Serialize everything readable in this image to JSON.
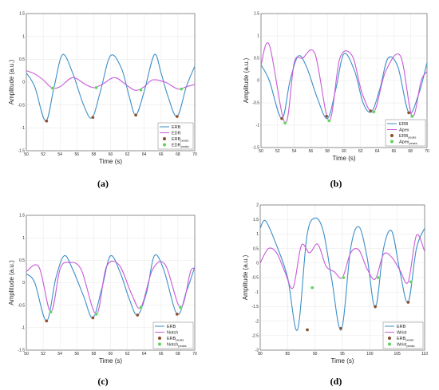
{
  "colors": {
    "blue": "#3d8fc8",
    "magenta": "#c85ad8",
    "peak_dark": "#8a4a2a",
    "peak_green": "#5bd45b",
    "grid": "#e6e6e6"
  },
  "chart_data": [
    {
      "type": "line",
      "label": "(a)",
      "xlabel": "Time (s)",
      "ylabel": "Amplitude (a.u.)",
      "xlim": [
        50,
        70
      ],
      "ylim": [
        -1.5,
        1.5
      ],
      "grid": true,
      "legend_position": "bottom-right",
      "xticks": [
        "50",
        "52",
        "54",
        "56",
        "58",
        "60",
        "62",
        "64",
        "66",
        "68",
        "70"
      ],
      "yticks": [
        "-1.5",
        "-1",
        "-0.5",
        "0",
        "0.5",
        "1",
        "1.5"
      ],
      "series": [
        {
          "name": "ERB",
          "color": "blue",
          "x": [
            50,
            51,
            52.3,
            53.3,
            54.3,
            55.5,
            56.8,
            57.8,
            58.8,
            60,
            61.3,
            62.2,
            63,
            64,
            65.2,
            66,
            66.8,
            67.9,
            69,
            70
          ],
          "y": [
            0.2,
            -0.1,
            -0.85,
            -0.1,
            0.6,
            0.2,
            -0.5,
            -0.78,
            -0.2,
            0.58,
            0.3,
            -0.3,
            -0.72,
            -0.2,
            0.6,
            0.2,
            -0.3,
            -0.75,
            -0.1,
            0.35
          ]
        },
        {
          "name": "EDR",
          "color": "magenta",
          "x": [
            50,
            51,
            52,
            53,
            54,
            55.5,
            57,
            58,
            59,
            60.5,
            62,
            63,
            64,
            65,
            66.5,
            68,
            69,
            70
          ],
          "y": [
            0.25,
            0.18,
            0.05,
            -0.12,
            -0.1,
            0.1,
            -0.05,
            -0.12,
            -0.05,
            0.1,
            -0.08,
            -0.18,
            -0.1,
            0.05,
            0.0,
            -0.15,
            -0.1,
            -0.05
          ]
        },
        {
          "name": "ERB",
          "sub": "peaks",
          "marker": "dark",
          "x": [
            52.4,
            57.9,
            63,
            67.9
          ],
          "y": [
            -0.85,
            -0.77,
            -0.72,
            -0.75
          ]
        },
        {
          "name": "EDR",
          "sub": "peaks",
          "marker": "green",
          "x": [
            53.1,
            58.3,
            63.6,
            68.4
          ],
          "y": [
            -0.13,
            -0.12,
            -0.17,
            -0.15
          ]
        }
      ]
    },
    {
      "type": "line",
      "label": "(b)",
      "xlabel": "Time (s)",
      "ylabel": "Amplitude (a.u.)",
      "xlim": [
        50,
        70
      ],
      "ylim": [
        -1.5,
        1.5
      ],
      "grid": true,
      "legend_position": "bottom-right",
      "xticks": [
        "50",
        "52",
        "54",
        "56",
        "58",
        "60",
        "62",
        "64",
        "66",
        "68",
        "70"
      ],
      "yticks": [
        "-1.5",
        "-1",
        "-0.5",
        "0",
        "0.5",
        "1",
        "1.5"
      ],
      "series": [
        {
          "name": "ERB",
          "color": "blue",
          "x": [
            50,
            51,
            52.5,
            53.5,
            54.5,
            55.5,
            56.8,
            58,
            59,
            60,
            61.3,
            62.3,
            63.3,
            64.3,
            65.3,
            66.5,
            67.8,
            69,
            70
          ],
          "y": [
            0.35,
            0.0,
            -0.85,
            0.0,
            0.55,
            0.3,
            -0.4,
            -0.85,
            -0.2,
            0.6,
            0.2,
            -0.5,
            -0.7,
            -0.2,
            0.5,
            0.3,
            -0.72,
            -0.3,
            0.4
          ]
        },
        {
          "name": "Apex",
          "color": "magenta",
          "x": [
            50,
            51,
            52.9,
            54,
            55,
            56.5,
            58.2,
            59.5,
            61,
            62.2,
            63.6,
            65,
            66.8,
            68.2,
            69.3,
            70
          ],
          "y": [
            0.35,
            0.8,
            -0.95,
            0.4,
            0.5,
            0.6,
            -0.9,
            0.5,
            0.55,
            -0.3,
            -0.7,
            0.2,
            0.55,
            -0.8,
            0.0,
            0.2
          ]
        },
        {
          "name": "ERB",
          "sub": "peaks",
          "marker": "dark",
          "x": [
            52.5,
            57.9,
            63.2,
            67.8
          ],
          "y": [
            -0.85,
            -0.8,
            -0.68,
            -0.72
          ]
        },
        {
          "name": "Apex",
          "sub": "peaks",
          "marker": "green",
          "x": [
            52.9,
            58.2,
            63.6,
            68.2
          ],
          "y": [
            -0.95,
            -0.9,
            -0.7,
            -0.8
          ]
        }
      ]
    },
    {
      "type": "line",
      "label": "(c)",
      "xlabel": "Time (s)",
      "ylabel": "Amplitude (a.u.)",
      "xlim": [
        50,
        70
      ],
      "ylim": [
        -1.5,
        1.5
      ],
      "grid": true,
      "legend_position": "bottom-right",
      "xticks": [
        "50",
        "52",
        "54",
        "56",
        "58",
        "60",
        "62",
        "64",
        "66",
        "68",
        "70"
      ],
      "yticks": [
        "-1.5",
        "-1",
        "-0.5",
        "0",
        "0.5",
        "1",
        "1.5"
      ],
      "series": [
        {
          "name": "ERB",
          "color": "blue",
          "x": [
            50,
            51,
            52.4,
            53.5,
            54.5,
            55.5,
            56.8,
            57.9,
            59,
            60,
            61.2,
            62.2,
            63.2,
            64.3,
            65.2,
            66.3,
            67.9,
            69,
            70
          ],
          "y": [
            0.2,
            0.0,
            -0.85,
            0.1,
            0.6,
            0.3,
            -0.3,
            -0.78,
            -0.1,
            0.6,
            0.2,
            -0.35,
            -0.72,
            -0.2,
            0.6,
            0.3,
            -0.7,
            -0.2,
            0.35
          ]
        },
        {
          "name": "Notch",
          "color": "magenta",
          "x": [
            50,
            51.5,
            52.9,
            54,
            55,
            56.5,
            58.3,
            59.5,
            61,
            62.5,
            63.6,
            65,
            66.5,
            68.3,
            69.5,
            70
          ],
          "y": [
            0.25,
            0.35,
            -0.65,
            0.3,
            0.45,
            0.3,
            -0.7,
            0.35,
            0.4,
            -0.25,
            -0.55,
            0.3,
            0.4,
            -0.55,
            0.25,
            0.3
          ]
        },
        {
          "name": "ERB",
          "sub": "peaks",
          "marker": "dark",
          "x": [
            52.4,
            57.9,
            63.2,
            67.9
          ],
          "y": [
            -0.85,
            -0.78,
            -0.72,
            -0.7
          ]
        },
        {
          "name": "Notch",
          "sub": "peaks",
          "marker": "green",
          "x": [
            52.9,
            58.3,
            63.6,
            68.3
          ],
          "y": [
            -0.65,
            -0.7,
            -0.55,
            -0.55
          ]
        }
      ]
    },
    {
      "type": "line",
      "label": "(d)",
      "xlabel": "Time (s)",
      "ylabel": "Amplitude (a.u.)",
      "xlim": [
        80,
        110
      ],
      "ylim": [
        -3,
        2
      ],
      "grid": true,
      "legend_position": "bottom-right",
      "xticks": [
        "80",
        "85",
        "90",
        "95",
        "100",
        "105",
        "110"
      ],
      "yticks": [
        "-3",
        "-2.5",
        "-2",
        "-1.5",
        "-1",
        "-0.5",
        "0",
        "0.5",
        "1",
        "1.5",
        "2"
      ],
      "series": [
        {
          "name": "ERB",
          "color": "blue",
          "x": [
            80,
            81,
            83,
            85,
            86.8,
            88.5,
            90,
            91.5,
            93,
            94.8,
            96.5,
            98,
            99.5,
            101,
            102.5,
            104,
            105.5,
            107,
            108.5,
            110
          ],
          "y": [
            1.2,
            1.45,
            0.6,
            -0.5,
            -2.3,
            0.9,
            1.55,
            1.1,
            -0.5,
            -2.3,
            0.5,
            1.25,
            0.2,
            -1.55,
            0.5,
            1.1,
            -0.3,
            -1.35,
            0.5,
            1.2
          ]
        },
        {
          "name": "Wrist",
          "color": "magenta",
          "x": [
            80,
            81.5,
            83,
            84.5,
            86,
            87.5,
            89,
            90.5,
            92,
            93.5,
            95,
            96.5,
            98,
            99.5,
            101,
            102.5,
            104,
            105.5,
            107,
            108.5,
            110
          ],
          "y": [
            0.0,
            0.5,
            0.35,
            -0.3,
            -0.85,
            0.6,
            0.35,
            0.65,
            -0.1,
            -0.3,
            -0.5,
            0.35,
            0.45,
            -0.2,
            -0.55,
            0.3,
            0.2,
            -0.25,
            -0.65,
            0.95,
            0.4
          ]
        },
        {
          "name": "ERB",
          "sub": "peaks",
          "marker": "dark",
          "x": [
            88.6,
            94.7,
            101,
            107
          ],
          "y": [
            -2.3,
            -2.25,
            -1.5,
            -1.35
          ]
        },
        {
          "name": "Wrist",
          "sub": "peaks",
          "marker": "green",
          "x": [
            89.5,
            95.2,
            101.5,
            107.5
          ],
          "y": [
            -0.85,
            -0.5,
            -0.5,
            -0.65
          ]
        }
      ]
    }
  ]
}
